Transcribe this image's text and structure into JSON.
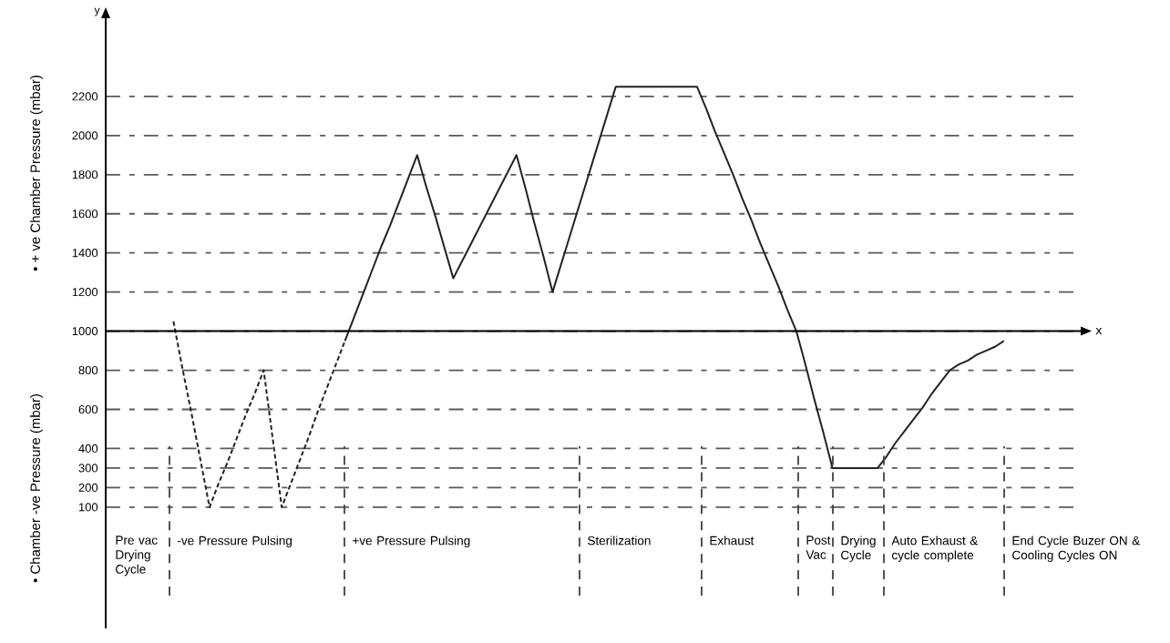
{
  "chart_data": {
    "type": "line",
    "xlabel": "x",
    "annotations": [
      "y",
      "• + ve Chamber Pressure (mbar)",
      "• Chamber -ve Pressure (mbar)",
      "Pre vac Drying Cycle",
      "-ve Pressure Pulsing",
      "+ve Pressure Pulsing",
      "Sterilization",
      "Exhaust",
      "Post Vac",
      "Drying Cycle",
      "Auto Exhaust & cycle complete",
      "End Cycle Buzer ON & Cooling Cycles ON"
    ],
    "categories": [
      null,
      null,
      null,
      null,
      null,
      null,
      null,
      null,
      null,
      null,
      null,
      null,
      null,
      null,
      null,
      null,
      null,
      null,
      null,
      null,
      null,
      null,
      null,
      null,
      null,
      null,
      null,
      null,
      null,
      null,
      null,
      null,
      null,
      null,
      null,
      null,
      null,
      null,
      null,
      null,
      null,
      null,
      null,
      null,
      null,
      null,
      null,
      null,
      null,
      null,
      null,
      null,
      null,
      null,
      null,
      null,
      null,
      null,
      null,
      null,
      null,
      null,
      null,
      null,
      null,
      null,
      null,
      null,
      null,
      null,
      null,
      null,
      null,
      null,
      null,
      null,
      null,
      null,
      null,
      null,
      null,
      null,
      null,
      null,
      null,
      null,
      null,
      null,
      null,
      null,
      null,
      null,
      null,
      null,
      null,
      null,
      null,
      null,
      null,
      null,
      null,
      null,
      null,
      null,
      null,
      null,
      null,
      null
    ],
    "series": [
      {
        "color": "#222222",
        "line_style": "dashed",
        "values": [
          null,
          null,
          null,
          null,
          null,
          null,
          null,
          1050,
          810,
          580,
          340,
          100,
          220,
          330,
          450,
          570,
          680,
          800,
          450,
          100,
          220,
          340,
          460,
          590,
          710,
          830,
          950,
          null,
          null,
          null,
          null,
          null,
          null,
          null,
          null,
          null,
          null,
          null,
          null,
          null,
          null,
          null,
          null,
          null,
          null,
          null,
          null,
          null,
          null,
          null,
          null,
          null,
          null,
          null,
          null,
          null,
          null,
          null,
          null,
          null,
          null,
          null,
          null,
          null,
          null,
          null,
          null,
          null,
          null,
          null,
          null,
          null,
          null,
          null,
          null,
          null,
          null,
          null,
          null,
          null,
          null,
          null,
          null,
          null,
          null,
          null,
          null,
          null,
          null,
          null,
          null,
          null,
          null,
          null,
          null,
          null,
          null,
          null,
          null,
          null,
          null,
          null,
          null,
          null,
          null,
          null,
          null,
          null
        ]
      },
      {
        "color": "#222222",
        "line_style": "solid",
        "values": [
          null,
          null,
          null,
          null,
          null,
          null,
          null,
          null,
          null,
          null,
          null,
          null,
          null,
          null,
          null,
          null,
          null,
          null,
          null,
          null,
          null,
          null,
          null,
          null,
          null,
          null,
          950,
          1070,
          1190,
          1310,
          1430,
          1540,
          1660,
          1780,
          1900,
          1740,
          1590,
          1430,
          1270,
          1360,
          1450,
          1540,
          1630,
          1720,
          1810,
          1900,
          1730,
          1550,
          1380,
          1200,
          1350,
          1500,
          1650,
          1800,
          1950,
          2100,
          2250,
          2250,
          2250,
          2250,
          2250,
          2250,
          2250,
          2250,
          2250,
          2250,
          2140,
          2020,
          1910,
          1800,
          1680,
          1570,
          1450,
          1340,
          1230,
          1110,
          1000,
          830,
          650,
          480,
          300,
          300,
          300,
          300,
          300,
          300,
          360,
          430,
          490,
          550,
          610,
          680,
          740,
          800,
          830,
          850,
          880,
          900,
          920,
          950,
          null,
          null,
          null,
          null,
          null,
          null,
          null,
          null
        ]
      }
    ],
    "ylim": [
      -520,
      2600
    ],
    "yticks": [
      100,
      200,
      300,
      400,
      600,
      800,
      1000,
      1200,
      1400,
      1600,
      1800,
      2000,
      2200
    ],
    "tick_labels": "y",
    "grid": "y",
    "ref_lines": [
      {
        "axis": "y",
        "value": 1000,
        "line_style": "solid"
      }
    ]
  }
}
